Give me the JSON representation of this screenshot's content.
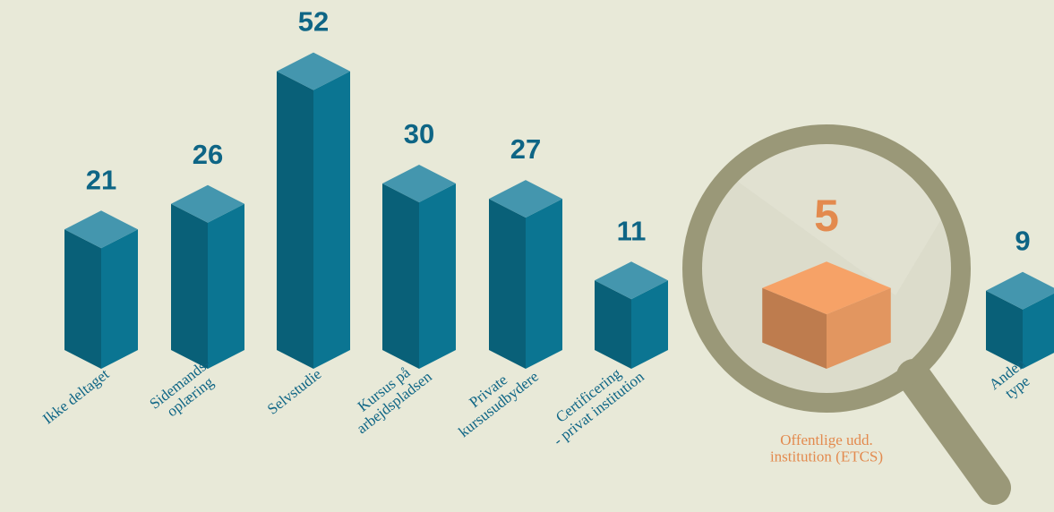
{
  "chart_data": {
    "type": "bar3d",
    "categories": [
      "Ikke deltaget",
      "Sidemands-\noplæring",
      "Selvstudie",
      "Kursus på\narbejdspladsen",
      "Private\nkursusudbydere",
      "Certificering\n- privat institution",
      "Offentlige udd.\ninstitution (ETCS)",
      "Anden\ntype"
    ],
    "values": [
      21,
      26,
      52,
      30,
      27,
      11,
      5,
      9
    ],
    "color": "#0b7592",
    "highlight": 6,
    "highlight_color": "#e38a4e"
  }
}
